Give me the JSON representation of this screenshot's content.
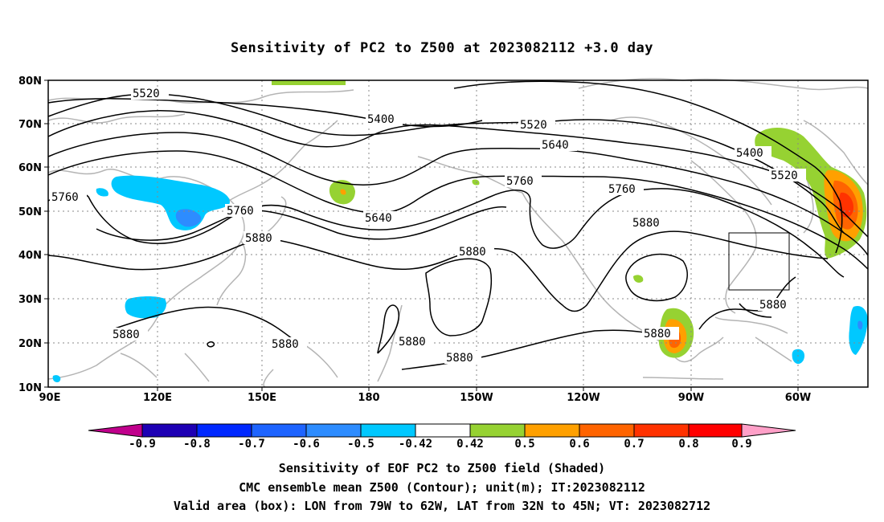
{
  "title": "Sensitivity of PC2 to Z500 at 2023082112 +3.0 day",
  "lat_labels": [
    "80N",
    "70N",
    "60N",
    "50N",
    "40N",
    "30N",
    "20N",
    "10N"
  ],
  "lon_labels": [
    "90E",
    "120E",
    "150E",
    "180",
    "150W",
    "120W",
    "90W",
    "60W"
  ],
  "contour_labels": [
    {
      "text": "5520",
      "pos": "top-left"
    },
    {
      "text": "5400",
      "pos": "top-center"
    },
    {
      "text": "5520",
      "pos": "top-center-right"
    },
    {
      "text": "5640",
      "pos": "upper-center-right"
    },
    {
      "text": "5760",
      "pos": "center-right"
    },
    {
      "text": "5760",
      "pos": "left"
    },
    {
      "text": "5760",
      "pos": "left-center"
    },
    {
      "text": "5880",
      "pos": "left-center"
    },
    {
      "text": "5640",
      "pos": "center"
    },
    {
      "text": "5760",
      "pos": "right-center"
    },
    {
      "text": "5880",
      "pos": "right-center"
    },
    {
      "text": "5880",
      "pos": "center"
    },
    {
      "text": "5400",
      "pos": "upper-right"
    },
    {
      "text": "5520",
      "pos": "upper-right"
    },
    {
      "text": "5880",
      "pos": "lower-right"
    },
    {
      "text": "5880",
      "pos": "lower-left"
    },
    {
      "text": "5880",
      "pos": "lower-center-left"
    },
    {
      "text": "5880",
      "pos": "lower-center"
    },
    {
      "text": "5880",
      "pos": "lower-center"
    },
    {
      "text": "5880",
      "pos": "lower-right-center"
    }
  ],
  "colorbar": {
    "labels": [
      "-0.9",
      "-0.8",
      "-0.7",
      "-0.6",
      "-0.5",
      "-0.42",
      "0.42",
      "0.5",
      "0.6",
      "0.7",
      "0.8",
      "0.9"
    ],
    "colors": [
      "#c0008c",
      "#1e00b4",
      "#0028ff",
      "#1e64ff",
      "#2d8cff",
      "#00c8ff",
      "#ffffff",
      "#96d232",
      "#ffa000",
      "#ff6400",
      "#ff3200",
      "#ff0000",
      "#ffa0c8"
    ]
  },
  "footer": {
    "line1": "Sensitivity of EOF PC2 to Z500 field (Shaded)",
    "line2": "CMC ensemble mean Z500 (Contour); unit(m); IT:2023082112",
    "line3": "Valid area (box): LON from 79W to 62W, LAT from 32N to 45N; VT: 2023082712"
  }
}
